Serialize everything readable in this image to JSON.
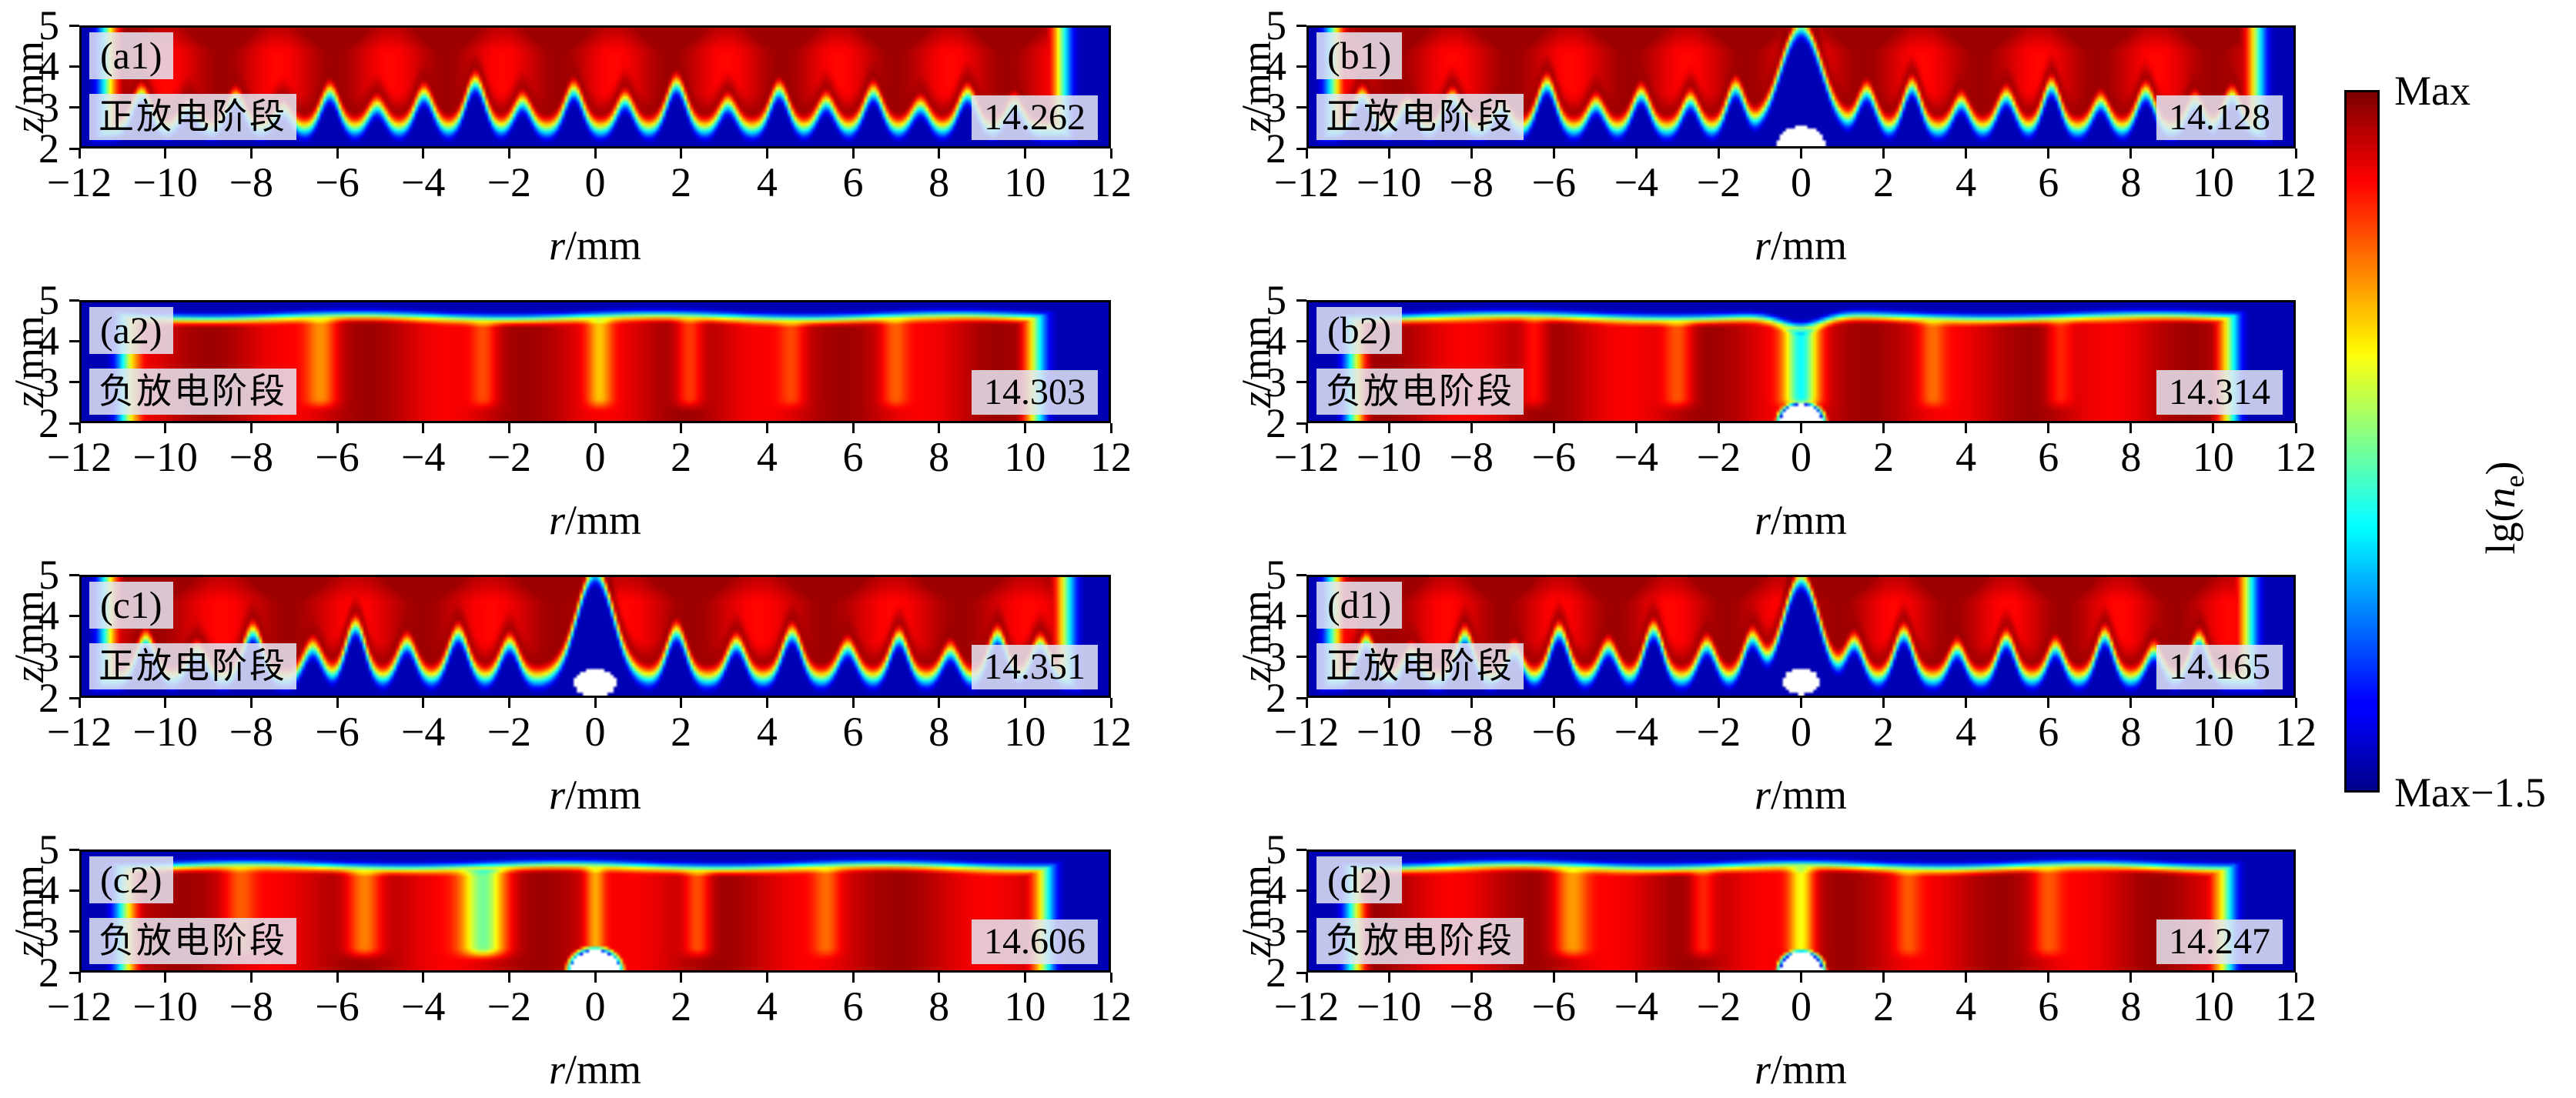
{
  "figure": {
    "axes": {
      "xlabel_var": "r",
      "xlabel_unit": "/mm",
      "ylabel_var": "z",
      "ylabel_unit": "/mm",
      "x_ticks": [
        "−12",
        "−10",
        "−8",
        "−6",
        "−4",
        "−2",
        "0",
        "2",
        "4",
        "6",
        "8",
        "10",
        "12"
      ],
      "y_ticks": [
        "5",
        "4",
        "3",
        "2"
      ]
    },
    "colorbar": {
      "top": "Max",
      "bottom": "Max−1.5",
      "label_prefix": "lg(",
      "label_var": "n",
      "label_sub": "e",
      "label_suffix": ")"
    }
  },
  "chart_data": {
    "type": "heatmap",
    "title": "",
    "x_axis": {
      "label": "r/mm",
      "min": -12,
      "max": 12,
      "tick_step": 2
    },
    "y_axis": {
      "label": "z/mm",
      "min": 2,
      "max": 5,
      "tick_step": 1
    },
    "colorbar": {
      "label": "lg(n_e)",
      "top_label": "Max",
      "bottom_label": "Max−1.5",
      "span_decades": 1.5,
      "colormap": "jet"
    },
    "panels": [
      {
        "id": "a1",
        "label": "(a1)",
        "stage": "正放电阶段",
        "value": "14.262",
        "value_num": 14.262,
        "render": {
          "type": "filament",
          "h0": 2.42,
          "d": 0.42,
          "edgeL": -11.4,
          "edgeR": 10.9,
          "ew": 0.45,
          "texture": [
            0.1,
            2.4,
            0.5
          ],
          "valleys": [
            [
              -10.6,
              0.9,
              0.3
            ],
            [
              -9.5,
              0.55,
              0.28
            ],
            [
              -8.4,
              0.8,
              0.3
            ],
            [
              -7.3,
              0.5,
              0.28
            ],
            [
              -6.2,
              0.95,
              0.3
            ],
            [
              -5.1,
              0.6,
              0.28
            ],
            [
              -4.0,
              0.9,
              0.3
            ],
            [
              -2.8,
              1.2,
              0.32
            ],
            [
              -1.7,
              0.7,
              0.28
            ],
            [
              -0.5,
              1.0,
              0.3
            ],
            [
              0.7,
              0.75,
              0.28
            ],
            [
              1.9,
              1.15,
              0.32
            ],
            [
              3.1,
              0.65,
              0.28
            ],
            [
              4.3,
              1.0,
              0.3
            ],
            [
              5.4,
              0.7,
              0.28
            ],
            [
              6.5,
              0.95,
              0.3
            ],
            [
              7.6,
              0.6,
              0.28
            ],
            [
              8.7,
              0.9,
              0.3
            ],
            [
              9.8,
              0.65,
              0.28
            ]
          ]
        }
      },
      {
        "id": "b1",
        "label": "(b1)",
        "stage": "正放电阶段",
        "value": "14.128",
        "value_num": 14.128,
        "render": {
          "type": "filament",
          "h0": 2.42,
          "d": 0.42,
          "edgeL": -11.4,
          "edgeR": 11.1,
          "ew": 0.45,
          "texture": [
            0.1,
            2.2,
            1.4
          ],
          "valleys": [
            [
              -10.7,
              0.85,
              0.3
            ],
            [
              -9.6,
              0.6,
              0.28
            ],
            [
              -8.5,
              0.8,
              0.3
            ],
            [
              -7.3,
              0.55,
              0.28
            ],
            [
              -6.2,
              1.15,
              0.32
            ],
            [
              -5.0,
              0.65,
              0.28
            ],
            [
              -3.9,
              0.9,
              0.3
            ],
            [
              -2.7,
              0.75,
              0.28
            ],
            [
              -1.6,
              1.05,
              0.3
            ],
            [
              0,
              2.6,
              0.7
            ],
            [
              1.6,
              0.95,
              0.3
            ],
            [
              2.7,
              1.1,
              0.3
            ],
            [
              3.9,
              0.7,
              0.28
            ],
            [
              5.0,
              0.85,
              0.3
            ],
            [
              6.1,
              1.1,
              0.3
            ],
            [
              7.3,
              0.7,
              0.28
            ],
            [
              8.4,
              0.95,
              0.3
            ],
            [
              9.6,
              0.7,
              0.28
            ],
            [
              10.5,
              0.85,
              0.3
            ]
          ],
          "bump": {
            "cx": 0,
            "cy": 2.0,
            "rx": 0.6,
            "ry": 0.5,
            "ring": 0
          }
        }
      },
      {
        "id": "a2",
        "label": "(a2)",
        "stage": "负放电阶段",
        "value": "14.303",
        "value_num": 14.303,
        "render": {
          "type": "slab",
          "t0": 4.62,
          "d": 0.22,
          "edgeL": -10.95,
          "edgeR": 10.3,
          "ew": 0.5,
          "texture": [
            0.09,
            1.7,
            1.2
          ],
          "wiggle": [
            0.05,
            0.9,
            0.3
          ],
          "channels": [
            [
              -6.4,
              0.18,
              0.35
            ],
            [
              -2.6,
              0.12,
              0.3
            ],
            [
              0.1,
              0.2,
              0.28
            ],
            [
              2.2,
              0.15,
              0.3
            ],
            [
              4.6,
              0.1,
              0.3
            ],
            [
              7.0,
              0.12,
              0.3
            ]
          ]
        }
      },
      {
        "id": "b2",
        "label": "(b2)",
        "stage": "负放电阶段",
        "value": "14.314",
        "value_num": 14.314,
        "render": {
          "type": "slab",
          "t0": 4.62,
          "d": 0.22,
          "edgeL": -10.9,
          "edgeR": 10.45,
          "ew": 0.5,
          "texture": [
            0.09,
            1.6,
            2.1
          ],
          "wiggle": [
            0.05,
            0.8,
            1.0
          ],
          "topdip": [
            0.3,
            0.7
          ],
          "channels": [
            [
              0,
              0.5,
              0.4
            ],
            [
              -3.0,
              0.15,
              0.35
            ],
            [
              3.2,
              0.12,
              0.3
            ],
            [
              -6.5,
              0.1,
              0.3
            ],
            [
              6.3,
              0.1,
              0.3
            ]
          ],
          "bump": {
            "cx": 0,
            "cy": 2.0,
            "rx": 0.5,
            "ry": 0.42,
            "ring": 0.3
          }
        }
      },
      {
        "id": "c1",
        "label": "(c1)",
        "stage": "正放电阶段",
        "value": "14.351",
        "value_num": 14.351,
        "render": {
          "type": "filament",
          "h0": 2.42,
          "d": 0.42,
          "edgeL": -11.4,
          "edgeR": 11.0,
          "ew": 0.45,
          "texture": [
            0.1,
            2.0,
            0.2
          ],
          "valleys": [
            [
              -10.5,
              1.0,
              0.3
            ],
            [
              -9.3,
              0.7,
              0.3
            ],
            [
              -8.0,
              1.2,
              0.32
            ],
            [
              -6.6,
              0.8,
              0.3
            ],
            [
              -5.6,
              1.35,
              0.32
            ],
            [
              -4.4,
              0.9,
              0.3
            ],
            [
              -3.2,
              1.15,
              0.32
            ],
            [
              -2.0,
              0.9,
              0.3
            ],
            [
              0,
              2.7,
              0.6
            ],
            [
              1.9,
              1.2,
              0.32
            ],
            [
              3.3,
              0.9,
              0.3
            ],
            [
              4.6,
              1.15,
              0.32
            ],
            [
              5.9,
              0.8,
              0.3
            ],
            [
              7.1,
              1.05,
              0.3
            ],
            [
              8.3,
              0.7,
              0.28
            ],
            [
              9.4,
              1.1,
              0.3
            ],
            [
              10.4,
              0.9,
              0.3
            ]
          ],
          "bump": {
            "cx": 0,
            "cy": 2.32,
            "rx": 0.5,
            "ry": 0.34,
            "ring": 0
          }
        }
      },
      {
        "id": "d1",
        "label": "(d1)",
        "stage": "正放电阶段",
        "value": "14.165",
        "value_num": 14.165,
        "render": {
          "type": "filament",
          "h0": 2.42,
          "d": 0.42,
          "edgeL": -11.4,
          "edgeR": 10.9,
          "ew": 0.45,
          "texture": [
            0.1,
            2.3,
            2.6
          ],
          "valleys": [
            [
              -10.6,
              0.95,
              0.3
            ],
            [
              -9.5,
              0.65,
              0.28
            ],
            [
              -8.2,
              1.1,
              0.3
            ],
            [
              -7.0,
              0.7,
              0.28
            ],
            [
              -5.9,
              1.2,
              0.32
            ],
            [
              -4.7,
              0.8,
              0.3
            ],
            [
              -3.6,
              1.25,
              0.32
            ],
            [
              -2.3,
              0.85,
              0.3
            ],
            [
              -1.2,
              1.0,
              0.3
            ],
            [
              0,
              2.55,
              0.6
            ],
            [
              1.3,
              0.9,
              0.3
            ],
            [
              2.5,
              1.15,
              0.32
            ],
            [
              3.8,
              0.75,
              0.28
            ],
            [
              5.0,
              1.0,
              0.3
            ],
            [
              6.2,
              0.8,
              0.28
            ],
            [
              7.4,
              1.1,
              0.3
            ],
            [
              8.6,
              0.7,
              0.28
            ],
            [
              9.7,
              1.0,
              0.3
            ]
          ],
          "bump": {
            "cx": 0,
            "cy": 2.35,
            "rx": 0.45,
            "ry": 0.32,
            "ring": 0
          }
        }
      },
      {
        "id": "c2",
        "label": "(c2)",
        "stage": "负放电阶段",
        "value": "14.606",
        "value_num": 14.606,
        "render": {
          "type": "slab",
          "t0": 4.62,
          "d": 0.22,
          "edgeL": -11.0,
          "edgeR": 10.5,
          "ew": 0.5,
          "texture": [
            0.09,
            1.5,
            0.4
          ],
          "wiggle": [
            0.05,
            0.85,
            2.2
          ],
          "channels": [
            [
              -2.6,
              0.42,
              0.5
            ],
            [
              -5.4,
              0.22,
              0.4
            ],
            [
              -8.3,
              0.12,
              0.35
            ],
            [
              2.4,
              0.16,
              0.3
            ],
            [
              5.4,
              0.12,
              0.3
            ],
            [
              0,
              0.2,
              0.22
            ]
          ],
          "bump": {
            "cx": 0,
            "cy": 2.0,
            "rx": 0.55,
            "ry": 0.5,
            "ring": 0.3
          }
        }
      },
      {
        "id": "d2",
        "label": "(d2)",
        "stage": "负放电阶段",
        "value": "14.247",
        "value_num": 14.247,
        "render": {
          "type": "slab",
          "t0": 4.62,
          "d": 0.22,
          "edgeL": -10.9,
          "edgeR": 10.35,
          "ew": 0.5,
          "texture": [
            0.09,
            1.65,
            3.0
          ],
          "wiggle": [
            0.05,
            0.9,
            1.6
          ],
          "channels": [
            [
              -5.6,
              0.2,
              0.4
            ],
            [
              -2.4,
              0.12,
              0.3
            ],
            [
              0,
              0.3,
              0.3
            ],
            [
              2.6,
              0.1,
              0.3
            ],
            [
              6.0,
              0.12,
              0.35
            ]
          ],
          "bump": {
            "cx": 0,
            "cy": 2.0,
            "rx": 0.5,
            "ry": 0.45,
            "ring": 0.28
          }
        }
      }
    ]
  }
}
